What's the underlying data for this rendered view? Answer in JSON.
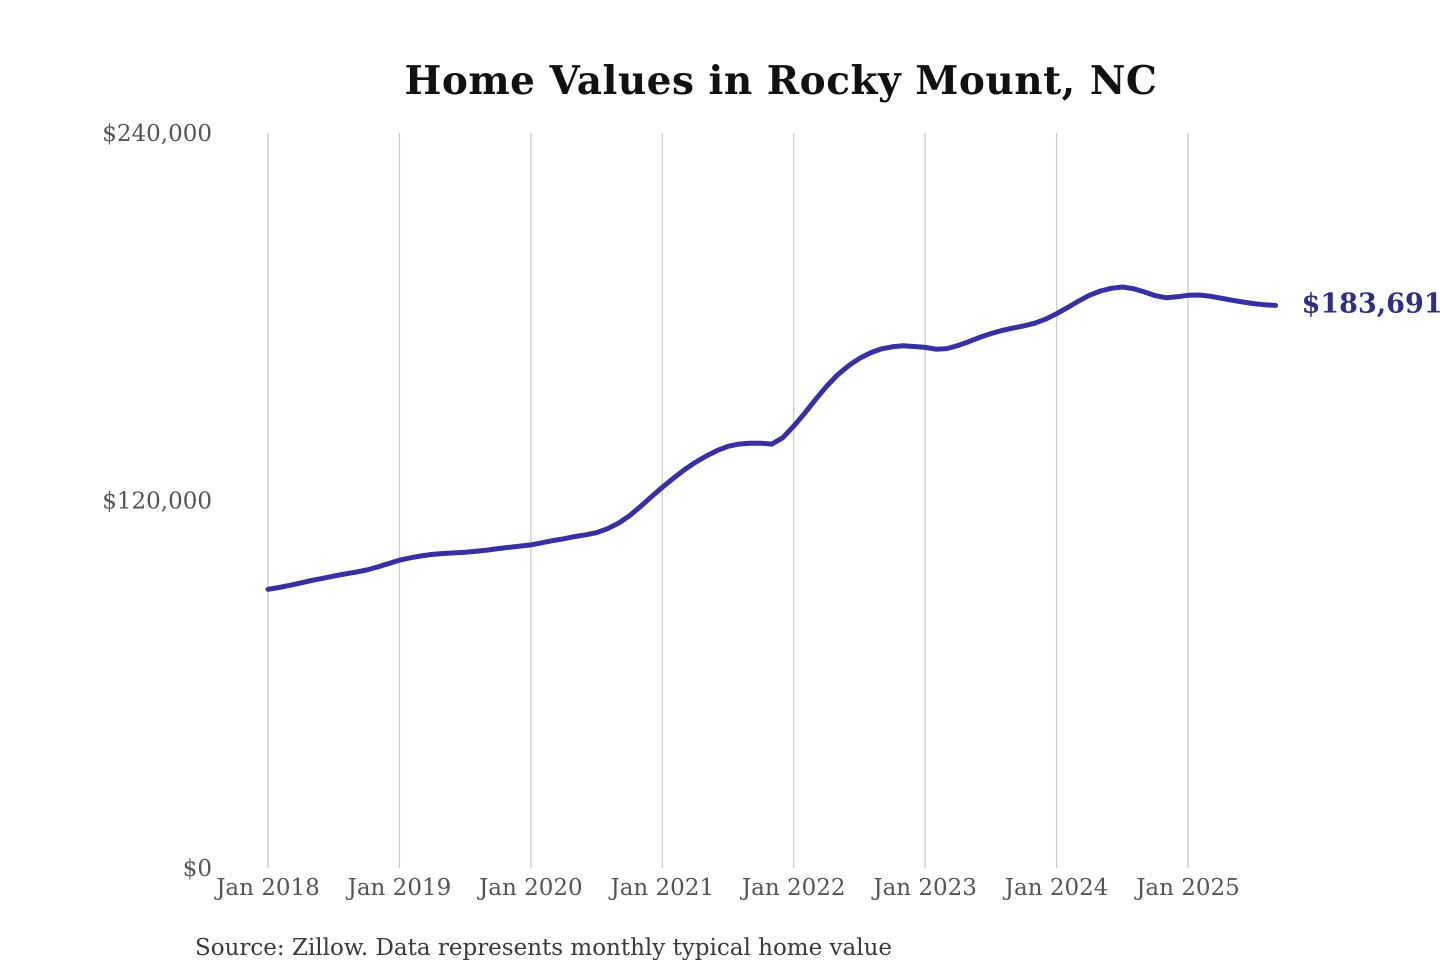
{
  "chart": {
    "title": "Home Values in Rocky Mount, NC",
    "latest_value_label": "$183,691",
    "source": "Source: Zillow. Data represents monthly typical home value"
  },
  "colors": {
    "line": "#3730a3",
    "annotation": "#312e81",
    "gridline": "#cccccc",
    "axis_text": "#555555",
    "title_text": "#111111",
    "source_text": "#3a3a3a",
    "background": "#ffffff"
  },
  "chart_data": {
    "type": "line",
    "title": "Home Values in Rocky Mount, NC",
    "xlabel": "",
    "ylabel": "",
    "ylim": [
      0,
      240000
    ],
    "grid": "vertical-only",
    "legend": "none",
    "y_ticks": [
      {
        "label": "$240,000",
        "value": 240000
      },
      {
        "label": "$120,000",
        "value": 120000
      },
      {
        "label": "$0",
        "value": 0
      }
    ],
    "x_ticks": [
      "Jan 2018",
      "Jan 2019",
      "Jan 2020",
      "Jan 2021",
      "Jan 2022",
      "Jan 2023",
      "Jan 2024",
      "Jan 2025"
    ],
    "end_annotation": "$183,691",
    "source": "Source: Zillow. Data represents monthly typical home value",
    "series": [
      {
        "name": "Monthly typical home value",
        "months": [
          "2018-01",
          "2018-02",
          "2018-03",
          "2018-04",
          "2018-05",
          "2018-06",
          "2018-07",
          "2018-08",
          "2018-09",
          "2018-10",
          "2018-11",
          "2018-12",
          "2019-01",
          "2019-02",
          "2019-03",
          "2019-04",
          "2019-05",
          "2019-06",
          "2019-07",
          "2019-08",
          "2019-09",
          "2019-10",
          "2019-11",
          "2019-12",
          "2020-01",
          "2020-02",
          "2020-03",
          "2020-04",
          "2020-05",
          "2020-06",
          "2020-07",
          "2020-08",
          "2020-09",
          "2020-10",
          "2020-11",
          "2020-12",
          "2021-01",
          "2021-02",
          "2021-03",
          "2021-04",
          "2021-05",
          "2021-06",
          "2021-07",
          "2021-08",
          "2021-09",
          "2021-10",
          "2021-11",
          "2021-12",
          "2022-01",
          "2022-02",
          "2022-03",
          "2022-04",
          "2022-05",
          "2022-06",
          "2022-07",
          "2022-08",
          "2022-09",
          "2022-10",
          "2022-11",
          "2022-12",
          "2023-01",
          "2023-02",
          "2023-03",
          "2023-04",
          "2023-05",
          "2023-06",
          "2023-07",
          "2023-08",
          "2023-09",
          "2023-10",
          "2023-11",
          "2023-12",
          "2024-01",
          "2024-02",
          "2024-03",
          "2024-04",
          "2024-05",
          "2024-06",
          "2024-07",
          "2024-08",
          "2024-09",
          "2024-10",
          "2024-11",
          "2024-12",
          "2025-01",
          "2025-02",
          "2025-03",
          "2025-04",
          "2025-05",
          "2025-06",
          "2025-07",
          "2025-08",
          "2025-09"
        ],
        "values": [
          91000,
          91600,
          92300,
          93100,
          93900,
          94600,
          95300,
          96000,
          96600,
          97300,
          98300,
          99400,
          100500,
          101300,
          101900,
          102400,
          102700,
          102900,
          103100,
          103400,
          103800,
          104300,
          104700,
          105100,
          105500,
          106200,
          106900,
          107500,
          108200,
          108800,
          109500,
          110800,
          112600,
          115000,
          118000,
          121200,
          124300,
          127200,
          130000,
          132400,
          134500,
          136300,
          137700,
          138400,
          138700,
          138700,
          138400,
          140500,
          144300,
          148500,
          153000,
          157300,
          161000,
          164000,
          166400,
          168200,
          169500,
          170200,
          170500,
          170300,
          170000,
          169400,
          169600,
          170600,
          171900,
          173300,
          174500,
          175500,
          176300,
          177000,
          177900,
          179200,
          181000,
          183000,
          185100,
          187000,
          188400,
          189300,
          189700,
          189200,
          188100,
          186900,
          186200,
          186500,
          187000,
          187100,
          186700,
          186100,
          185400,
          184800,
          184300,
          183900,
          183691
        ]
      }
    ]
  }
}
